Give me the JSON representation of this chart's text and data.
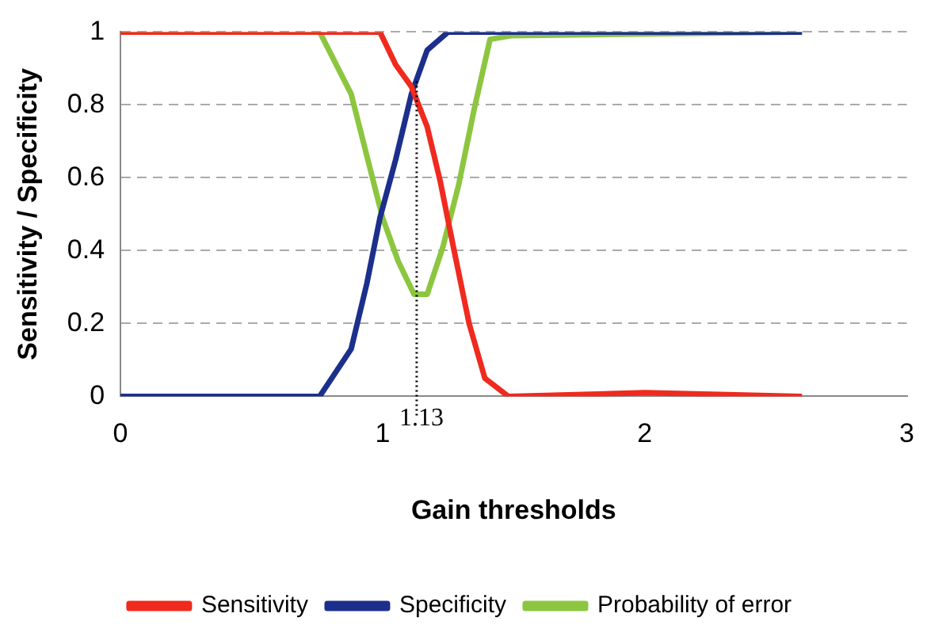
{
  "chart_data": {
    "type": "line",
    "xlabel": "Gain thresholds",
    "ylabel": "Sensitivity / Specificity",
    "xlim": [
      0,
      3
    ],
    "xticks": [
      0,
      1,
      2,
      3
    ],
    "ylim": [
      0,
      1
    ],
    "yticks": [
      0,
      0.2,
      0.4,
      0.6,
      0.8,
      1
    ],
    "grid": "y",
    "legend": "bottom",
    "marker": "none",
    "line_style": "solid",
    "series": [
      {
        "name": "Sensitivity",
        "color": "#f02a1e",
        "x": [
          0,
          0.99,
          1.05,
          1.11,
          1.17,
          1.22,
          1.27,
          1.33,
          1.39,
          1.48,
          2.0,
          2.6
        ],
        "values": [
          1,
          1,
          0.91,
          0.85,
          0.74,
          0.59,
          0.41,
          0.2,
          0.05,
          0,
          0.01,
          0
        ]
      },
      {
        "name": "Specificity",
        "color": "#1c2f8c",
        "x": [
          0,
          0.76,
          0.88,
          0.94,
          0.99,
          1.05,
          1.11,
          1.17,
          1.25,
          2.6
        ],
        "values": [
          0,
          0,
          0.13,
          0.31,
          0.49,
          0.65,
          0.83,
          0.95,
          1,
          1
        ]
      },
      {
        "name": "Probability of error",
        "color": "#8cc63f",
        "x": [
          0,
          0.76,
          0.88,
          0.94,
          1.0,
          1.06,
          1.12,
          1.17,
          1.23,
          1.29,
          1.35,
          1.41,
          1.49,
          2.6
        ],
        "values": [
          1,
          1,
          0.83,
          0.66,
          0.49,
          0.37,
          0.28,
          0.28,
          0.41,
          0.58,
          0.79,
          0.98,
          0.99,
          1
        ]
      }
    ],
    "ref_lines": [
      {
        "axis": "x",
        "value": 1.13,
        "label": "1.13",
        "color": "#000000",
        "line_style": "dotted"
      }
    ]
  }
}
